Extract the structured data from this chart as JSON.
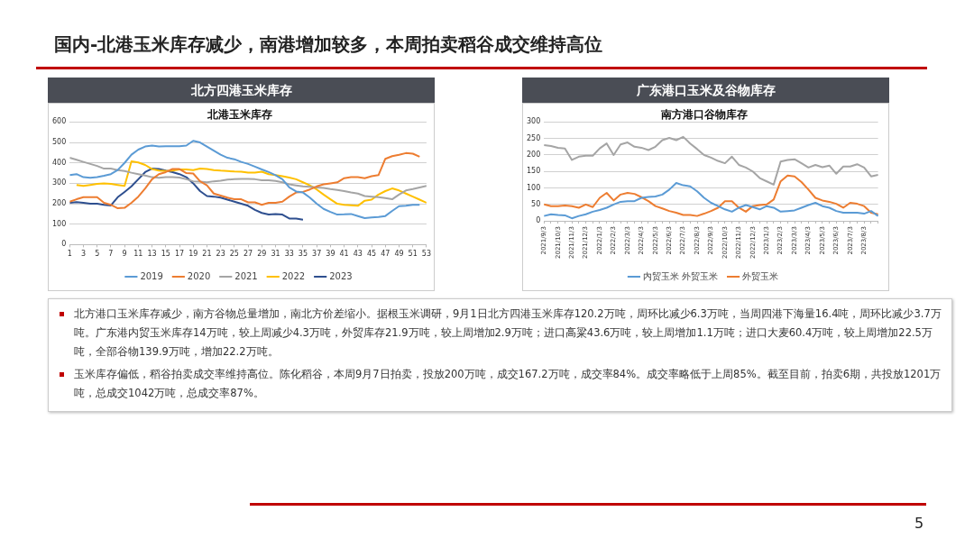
{
  "chart_data": [
    {
      "type": "line",
      "title": "北方四港玉米库存",
      "subtitle": "北港玉米库存",
      "x": [
        1,
        2,
        3,
        4,
        5,
        6,
        7,
        8,
        9,
        10,
        11,
        12,
        13,
        14,
        15,
        16,
        17,
        18,
        19,
        20,
        21,
        22,
        23,
        24,
        25,
        26,
        27,
        28,
        29,
        30,
        31,
        32,
        33,
        34,
        35,
        36,
        37,
        38,
        39,
        40,
        41,
        42,
        43,
        44,
        45,
        46,
        47,
        48,
        49,
        50,
        51,
        52,
        53
      ],
      "xlim": [
        1,
        53
      ],
      "xticks": [
        1,
        3,
        5,
        7,
        9,
        11,
        13,
        15,
        17,
        19,
        21,
        23,
        25,
        27,
        29,
        31,
        33,
        35,
        37,
        39,
        41,
        43,
        45,
        47,
        49,
        51,
        53
      ],
      "ylim": [
        0,
        600
      ],
      "yticks": [
        0,
        100,
        200,
        300,
        400,
        500,
        600
      ],
      "grid": "y",
      "legend": "bottom",
      "marker": "none",
      "series": [
        {
          "name": "2019",
          "color": "#5b9bd5",
          "values": [
            340,
            345,
            330,
            327,
            330,
            337,
            345,
            365,
            400,
            440,
            465,
            480,
            485,
            480,
            482,
            482,
            482,
            485,
            508,
            500,
            480,
            460,
            440,
            425,
            418,
            405,
            395,
            382,
            368,
            355,
            340,
            320,
            280,
            260,
            255,
            230,
            200,
            175,
            160,
            147,
            148,
            150,
            140,
            130,
            133,
            135,
            140,
            165,
            188,
            190,
            195,
            195,
            null
          ]
        },
        {
          "name": "2020",
          "color": "#ed7d31",
          "values": [
            210,
            222,
            232,
            232,
            232,
            205,
            195,
            178,
            180,
            205,
            235,
            275,
            320,
            345,
            355,
            370,
            370,
            350,
            348,
            310,
            290,
            250,
            240,
            230,
            222,
            222,
            207,
            207,
            195,
            205,
            205,
            210,
            235,
            255,
            258,
            270,
            285,
            295,
            300,
            305,
            325,
            330,
            330,
            325,
            335,
            340,
            420,
            433,
            440,
            448,
            445,
            430,
            null
          ]
        },
        {
          "name": "2021",
          "color": "#a5a5a5",
          "values": [
            425,
            415,
            405,
            395,
            385,
            372,
            372,
            365,
            360,
            352,
            345,
            338,
            330,
            327,
            330,
            330,
            328,
            320,
            310,
            308,
            305,
            310,
            313,
            318,
            320,
            322,
            322,
            320,
            315,
            315,
            312,
            305,
            295,
            290,
            285,
            283,
            280,
            277,
            272,
            268,
            262,
            255,
            250,
            238,
            235,
            232,
            228,
            222,
            245,
            265,
            272,
            280,
            288
          ]
        },
        {
          "name": "2022",
          "color": "#ffc000",
          "values": [
            null,
            292,
            287,
            292,
            297,
            300,
            297,
            292,
            287,
            408,
            402,
            390,
            370,
            362,
            360,
            362,
            368,
            368,
            365,
            372,
            370,
            365,
            362,
            360,
            358,
            357,
            352,
            352,
            357,
            345,
            340,
            335,
            328,
            320,
            305,
            290,
            270,
            245,
            222,
            200,
            195,
            193,
            190,
            215,
            220,
            245,
            262,
            275,
            265,
            250,
            235,
            220,
            205
          ]
        },
        {
          "name": "2023",
          "color": "#2e4f8f",
          "values": [
            205,
            208,
            205,
            200,
            200,
            195,
            192,
            232,
            258,
            285,
            320,
            355,
            372,
            370,
            362,
            355,
            345,
            330,
            300,
            262,
            238,
            235,
            230,
            220,
            210,
            200,
            190,
            170,
            155,
            147,
            150,
            147,
            128,
            127,
            122,
            null,
            null,
            null,
            null,
            null,
            null,
            null,
            null,
            null,
            null,
            null,
            null,
            null,
            null,
            null,
            null,
            null,
            null
          ]
        }
      ]
    },
    {
      "type": "line",
      "title": "广东港口玉米及谷物库存",
      "subtitle": "南方港口谷物库存",
      "categories": [
        "2021/9/3",
        null,
        "2021/10/3",
        null,
        "2021/11/3",
        null,
        "2021/12/3",
        null,
        "2022/1/3",
        null,
        "2022/2/3",
        null,
        "2022/3/3",
        null,
        "2022/4/3",
        null,
        "2022/5/3",
        null,
        "2022/6/3",
        null,
        "2022/7/3",
        null,
        "2022/8/3",
        null,
        "2022/9/3",
        null,
        "2022/10/3",
        null,
        "2022/11/3",
        null,
        "2022/12/3",
        null,
        "2023/1/3",
        null,
        "2023/2/3",
        null,
        "2023/3/3",
        null,
        "2023/4/3",
        null,
        "2023/5/3",
        null,
        "2023/6/3",
        null,
        "2023/7/3",
        null,
        "2023/8/3",
        null,
        null
      ],
      "ylim": [
        0,
        300
      ],
      "yticks": [
        0,
        50,
        100,
        150,
        200,
        250,
        300
      ],
      "grid": "y",
      "legend": "bottom",
      "marker": "none",
      "series": [
        {
          "color": "#a5a5a5",
          "values": [
            230,
            227,
            222,
            220,
            185,
            195,
            198,
            198,
            220,
            235,
            200,
            232,
            238,
            225,
            222,
            215,
            225,
            245,
            252,
            245,
            255,
            235,
            218,
            200,
            192,
            182,
            175,
            195,
            170,
            162,
            150,
            130,
            120,
            110,
            180,
            185,
            187,
            175,
            162,
            170,
            163,
            168,
            143,
            165,
            165,
            172,
            162,
            135,
            140
          ]
        },
        {
          "name": "内贸玉米 外贸玉米",
          "color": "#5b9bd5",
          "values": [
            15,
            20,
            18,
            17,
            8,
            15,
            20,
            28,
            33,
            40,
            50,
            58,
            60,
            60,
            70,
            73,
            74,
            80,
            95,
            115,
            108,
            105,
            90,
            70,
            55,
            45,
            35,
            28,
            40,
            48,
            42,
            35,
            45,
            40,
            28,
            30,
            32,
            40,
            48,
            55,
            45,
            40,
            30,
            25,
            25,
            25,
            22,
            30,
            15
          ]
        },
        {
          "name": "外贸玉米",
          "color": "#ed7d31",
          "values": [
            50,
            45,
            45,
            47,
            45,
            40,
            50,
            42,
            70,
            85,
            62,
            80,
            85,
            82,
            72,
            60,
            45,
            38,
            30,
            25,
            18,
            18,
            15,
            22,
            30,
            40,
            60,
            60,
            40,
            28,
            45,
            48,
            50,
            65,
            120,
            138,
            135,
            118,
            95,
            70,
            62,
            58,
            52,
            40,
            55,
            52,
            45,
            25,
            20
          ]
        }
      ]
    },
    {
      "type": "other",
      "title": "国内-北港玉米库存减少，南港增加较多，本周拍卖稻谷成交维持高位",
      "annotations": [
        "北方港口玉米库存减少，南方谷物总量增加，南北方价差缩小。据根玉米调研，9月1日北方四港玉米库存120.2万吨，周环比减少6.3万吨，当周四港下海量16.4吨，周环比减少3.7万吨。广东港内贸玉米库存14万吨，较上周减少4.3万吨，外贸库存21.9万吨，较上周增加2.9万吨；进口高粱43.6万吨，较上周增加1.1万吨；进口大麦60.4万吨，较上周增加22.5万吨，全部谷物139.9万吨，增加22.2万吨。",
        "玉米库存偏低，稻谷拍卖成交率维持高位。陈化稻谷，本周9月7日拍卖，投放200万吨，成交167.2万吨，成交率84%。成交率略低于上周85%。截至目前，拍卖6期，共投放1201万吨，总成交1042万吨，总成交率87%。",
        "5"
      ]
    }
  ]
}
